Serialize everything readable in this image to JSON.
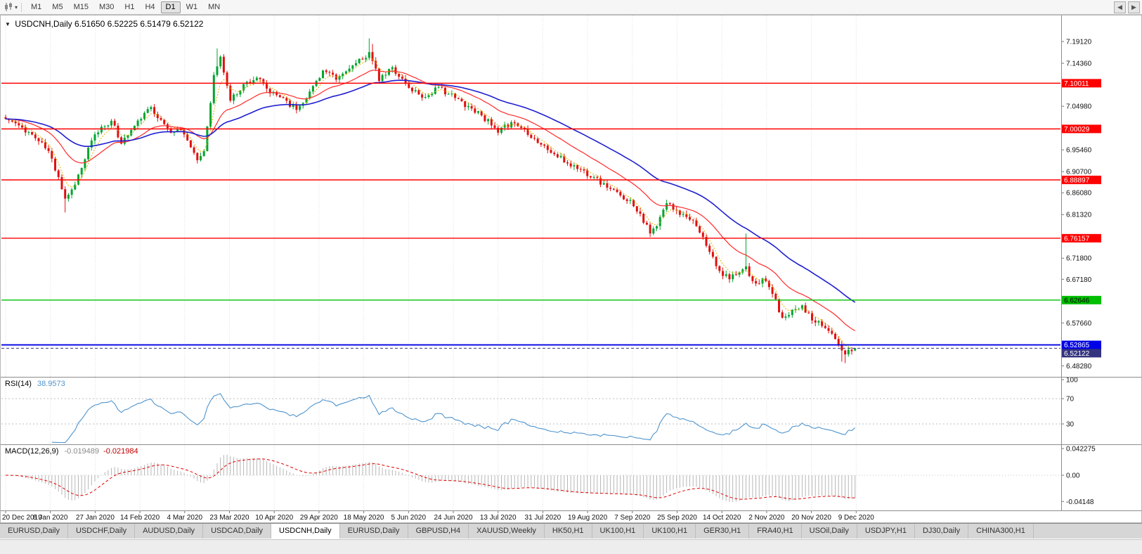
{
  "icons": {
    "collapse_arrow": "▼",
    "chart_dropdown": "▾",
    "scroll_left": "◀",
    "scroll_right": "▶"
  },
  "toolbar": {
    "timeframes": [
      {
        "label": "M1",
        "active": false
      },
      {
        "label": "M5",
        "active": false
      },
      {
        "label": "M15",
        "active": false
      },
      {
        "label": "M30",
        "active": false
      },
      {
        "label": "H1",
        "active": false
      },
      {
        "label": "H4",
        "active": false
      },
      {
        "label": "D1",
        "active": true
      },
      {
        "label": "W1",
        "active": false
      },
      {
        "label": "MN",
        "active": false
      }
    ]
  },
  "chart": {
    "title": "USDCNH,Daily 6.51650 6.52225 6.51479 6.52122",
    "symbol": "USDCNH",
    "timeframe": "Daily",
    "open": "6.51650",
    "high": "6.52225",
    "low": "6.51479",
    "close": "6.52122"
  },
  "price_axis": {
    "labels": [
      {
        "text": "7.19120",
        "value": 7.1912,
        "type": "plain"
      },
      {
        "text": "7.14360",
        "value": 7.1436,
        "type": "plain"
      },
      {
        "text": "7.10011",
        "value": 7.10011,
        "type": "red"
      },
      {
        "text": "7.04980",
        "value": 7.0498,
        "type": "plain"
      },
      {
        "text": "7.00029",
        "value": 7.00029,
        "type": "red"
      },
      {
        "text": "6.95460",
        "value": 6.9546,
        "type": "plain"
      },
      {
        "text": "6.90700",
        "value": 6.907,
        "type": "plain"
      },
      {
        "text": "6.88897",
        "value": 6.88897,
        "type": "red"
      },
      {
        "text": "6.86080",
        "value": 6.8608,
        "type": "plain"
      },
      {
        "text": "6.81320",
        "value": 6.8132,
        "type": "plain"
      },
      {
        "text": "6.76157",
        "value": 6.76157,
        "type": "red"
      },
      {
        "text": "6.71800",
        "value": 6.718,
        "type": "plain"
      },
      {
        "text": "6.67180",
        "value": 6.6718,
        "type": "plain"
      },
      {
        "text": "6.62646",
        "value": 6.62646,
        "type": "green"
      },
      {
        "text": "6.57660",
        "value": 6.5766,
        "type": "plain"
      },
      {
        "text": "6.52865",
        "value": 6.52865,
        "type": "blue"
      },
      {
        "text": "6.52122",
        "value": 6.52122,
        "type": "current"
      },
      {
        "text": "6.48280",
        "value": 6.4828,
        "type": "plain"
      }
    ]
  },
  "rsi": {
    "label": "RSI(14)",
    "value": "38.9573",
    "axis": [
      {
        "text": "100",
        "value": 100
      },
      {
        "text": "70",
        "value": 70
      },
      {
        "text": "30",
        "value": 30
      }
    ],
    "levels": [
      70,
      30
    ]
  },
  "macd": {
    "label": "MACD(12,26,9)",
    "value_main": "-0.019489",
    "value_signal": "-0.021984",
    "axis": [
      {
        "text": "0.042275",
        "value": 0.042275
      },
      {
        "text": "0.00",
        "value": 0
      },
      {
        "text": "-0.04148",
        "value": -0.04148
      }
    ]
  },
  "dates": [
    "20 Dec 2019",
    "8 Jan 2020",
    "27 Jan 2020",
    "14 Feb 2020",
    "4 Mar 2020",
    "23 Mar 2020",
    "10 Apr 2020",
    "29 Apr 2020",
    "18 May 2020",
    "5 Jun 2020",
    "24 Jun 2020",
    "13 Jul 2020",
    "31 Jul 2020",
    "19 Aug 2020",
    "7 Sep 2020",
    "25 Sep 2020",
    "14 Oct 2020",
    "2 Nov 2020",
    "20 Nov 2020",
    "9 Dec 2020"
  ],
  "tabs": [
    {
      "label": "EURUSD,Daily",
      "active": false
    },
    {
      "label": "USDCHF,Daily",
      "active": false
    },
    {
      "label": "AUDUSD,Daily",
      "active": false
    },
    {
      "label": "USDCAD,Daily",
      "active": false
    },
    {
      "label": "USDCNH,Daily",
      "active": true
    },
    {
      "label": "EURUSD,Daily",
      "active": false
    },
    {
      "label": "GBPUSD,H4",
      "active": false
    },
    {
      "label": "XAUUSD,Weekly",
      "active": false
    },
    {
      "label": "HK50,H1",
      "active": false
    },
    {
      "label": "UK100,H1",
      "active": false
    },
    {
      "label": "UK100,H1",
      "active": false
    },
    {
      "label": "GER30,H1",
      "active": false
    },
    {
      "label": "FRA40,H1",
      "active": false
    },
    {
      "label": "USOil,Daily",
      "active": false
    },
    {
      "label": "USDJPY,H1",
      "active": false
    },
    {
      "label": "DJ30,Daily",
      "active": false
    },
    {
      "label": "CHINA300,H1",
      "active": false
    }
  ],
  "chart_data": {
    "type": "candlestick",
    "symbol": "USDCNH",
    "timeframe": "Daily",
    "bar_count": 258,
    "noise_seed": 11,
    "price_min": 6.465,
    "price_max": 7.245,
    "close_anchors": [
      [
        0,
        7.022
      ],
      [
        4,
        7.008
      ],
      [
        8,
        6.988
      ],
      [
        13,
        6.952
      ],
      [
        16,
        6.895
      ],
      [
        18,
        6.848
      ],
      [
        20,
        6.868
      ],
      [
        23,
        6.915
      ],
      [
        26,
        6.975
      ],
      [
        29,
        7.005
      ],
      [
        32,
        7.018
      ],
      [
        35,
        6.968
      ],
      [
        38,
        6.998
      ],
      [
        41,
        7.022
      ],
      [
        44,
        7.048
      ],
      [
        47,
        7.02
      ],
      [
        50,
        6.992
      ],
      [
        53,
        6.998
      ],
      [
        55,
        6.975
      ],
      [
        58,
        6.932
      ],
      [
        60,
        6.952
      ],
      [
        63,
        7.118
      ],
      [
        65,
        7.158
      ],
      [
        68,
        7.062
      ],
      [
        72,
        7.098
      ],
      [
        76,
        7.112
      ],
      [
        80,
        7.078
      ],
      [
        84,
        7.068
      ],
      [
        88,
        7.042
      ],
      [
        92,
        7.082
      ],
      [
        96,
        7.128
      ],
      [
        100,
        7.108
      ],
      [
        104,
        7.132
      ],
      [
        108,
        7.152
      ],
      [
        110,
        7.168
      ],
      [
        113,
        7.105
      ],
      [
        117,
        7.135
      ],
      [
        122,
        7.09
      ],
      [
        127,
        7.07
      ],
      [
        131,
        7.092
      ],
      [
        136,
        7.068
      ],
      [
        140,
        7.05
      ],
      [
        144,
        7.03
      ],
      [
        147,
        7.008
      ],
      [
        149,
        6.992
      ],
      [
        153,
        7.015
      ],
      [
        157,
        7.0
      ],
      [
        162,
        6.966
      ],
      [
        166,
        6.945
      ],
      [
        170,
        6.925
      ],
      [
        174,
        6.912
      ],
      [
        178,
        6.895
      ],
      [
        182,
        6.872
      ],
      [
        186,
        6.855
      ],
      [
        189,
        6.845
      ],
      [
        192,
        6.815
      ],
      [
        195,
        6.772
      ],
      [
        197,
        6.788
      ],
      [
        200,
        6.838
      ],
      [
        203,
        6.822
      ],
      [
        206,
        6.808
      ],
      [
        209,
        6.788
      ],
      [
        212,
        6.745
      ],
      [
        216,
        6.69
      ],
      [
        219,
        6.672
      ],
      [
        221,
        6.682
      ],
      [
        224,
        6.7
      ],
      [
        226,
        6.668
      ],
      [
        230,
        6.668
      ],
      [
        232,
        6.64
      ],
      [
        235,
        6.588
      ],
      [
        238,
        6.605
      ],
      [
        241,
        6.615
      ],
      [
        244,
        6.582
      ],
      [
        247,
        6.57
      ],
      [
        250,
        6.553
      ],
      [
        252,
        6.53
      ],
      [
        254,
        6.508
      ],
      [
        255,
        6.518
      ],
      [
        257,
        6.52122
      ]
    ],
    "wick_spikes": [
      {
        "i": 18,
        "low": 6.818
      },
      {
        "i": 64,
        "high": 7.176
      },
      {
        "i": 110,
        "high": 7.198
      },
      {
        "i": 111,
        "high": 7.186
      },
      {
        "i": 224,
        "high": 6.772
      },
      {
        "i": 253,
        "low": 6.492
      },
      {
        "i": 254,
        "low": 6.489
      }
    ],
    "last_ohlc": {
      "open": 6.5165,
      "high": 6.52225,
      "low": 6.51479,
      "close": 6.52122
    },
    "indicators": {
      "ma_fast_period": 5,
      "ma_mid_period": 20,
      "ma_slow_period": 45,
      "rsi_period": 14,
      "macd": [
        12,
        26,
        9
      ]
    },
    "horizontal_lines": [
      {
        "price": 7.10011,
        "color": "red"
      },
      {
        "price": 7.00029,
        "color": "red"
      },
      {
        "price": 6.88897,
        "color": "red"
      },
      {
        "price": 6.76157,
        "color": "red"
      },
      {
        "price": 6.62646,
        "color": "green"
      },
      {
        "price": 6.52865,
        "color": "blue"
      }
    ],
    "current_price": 6.52122,
    "rsi_current": 38.9573,
    "macd_current": [
      -0.019489,
      -0.021984
    ]
  },
  "colors": {
    "candle_up": "#00a52f",
    "candle_down": "#e01010",
    "ma_fast": "#e3b400",
    "ma_mid": "#ff2a2a",
    "ma_slow": "#1f1fd0",
    "line_red": "#ff0000",
    "line_green": "#00bf00",
    "line_blue": "#0000e6",
    "line_current": "#34347e",
    "rsi_line": "#4f94cd",
    "macd_hist": "#b6b6b6",
    "macd_signal": "#e00000",
    "grid": "#dedede",
    "axis_text": "#111111",
    "panel_border": "#8c8c8c"
  }
}
